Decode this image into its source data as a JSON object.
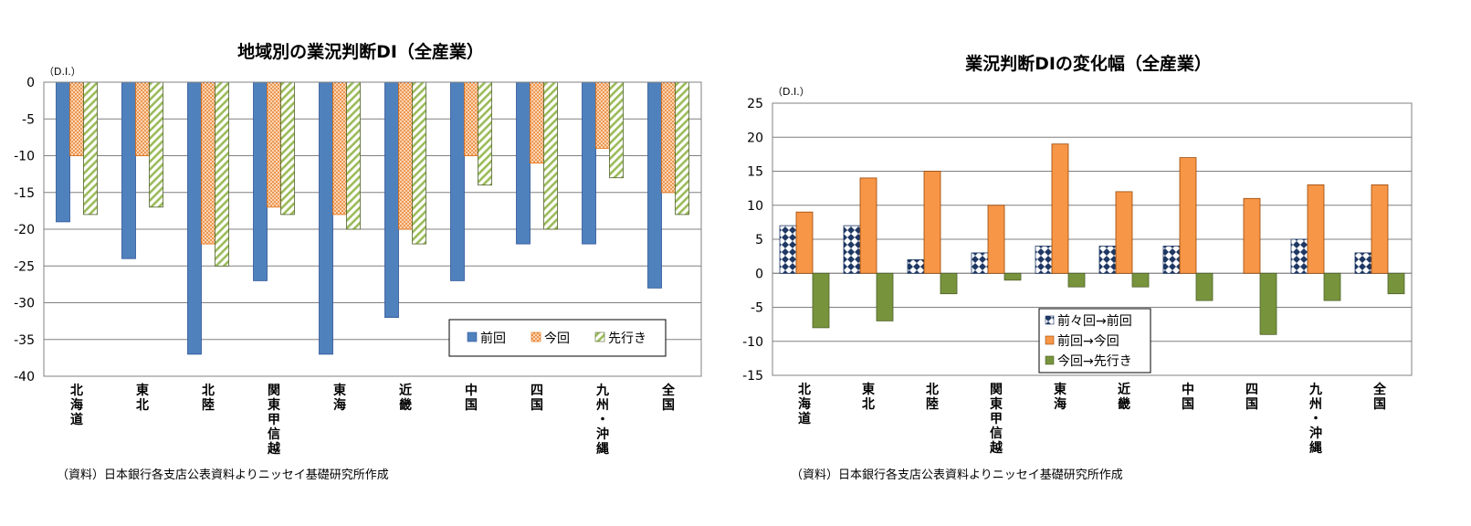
{
  "chart_data": [
    {
      "type": "bar",
      "title": "地域別の業況判断DI（全産業）",
      "unit_label": "（D.I.）",
      "categories": [
        "北海道",
        "東北",
        "北陸",
        "関東甲信越",
        "東海",
        "近畿",
        "中国",
        "四国",
        "九州・沖縄",
        "全国"
      ],
      "series": [
        {
          "name": "前回",
          "values": [
            -19,
            -24,
            -37,
            -27,
            -37,
            -32,
            -27,
            -22,
            -22,
            -28
          ],
          "color": "#4f81bd"
        },
        {
          "name": "今回",
          "values": [
            -10,
            -10,
            -22,
            -17,
            -18,
            -20,
            -10,
            -11,
            -9,
            -15
          ],
          "color": "#f79646"
        },
        {
          "name": "先行き",
          "values": [
            -18,
            -17,
            -25,
            -18,
            -20,
            -22,
            -14,
            -20,
            -13,
            -18
          ],
          "color": "#9bbb59"
        }
      ],
      "ylim": [
        -40,
        0
      ],
      "yticks": [
        "0",
        "-5",
        "-10",
        "-15",
        "-20",
        "-25",
        "-30",
        "-35",
        "-40"
      ],
      "grid": true,
      "legend_position": "bottom-right",
      "source": "（資料）日本銀行各支店公表資料よりニッセイ基礎研究所作成"
    },
    {
      "type": "bar",
      "title": "業況判断DIの変化幅（全産業）",
      "unit_label": "（D.I.）",
      "categories": [
        "北海道",
        "東北",
        "北陸",
        "関東甲信越",
        "東海",
        "近畿",
        "中国",
        "四国",
        "九州・沖縄",
        "全国"
      ],
      "series": [
        {
          "name": "前々回→前回",
          "values": [
            7,
            7,
            2,
            3,
            4,
            4,
            4,
            0,
            5,
            3
          ],
          "color": "#1f3864"
        },
        {
          "name": "前回→今回",
          "values": [
            9,
            14,
            15,
            10,
            19,
            12,
            17,
            11,
            13,
            13
          ],
          "color": "#f79646"
        },
        {
          "name": "今回→先行き",
          "values": [
            -8,
            -7,
            -3,
            -1,
            -2,
            -2,
            -4,
            -9,
            -4,
            -3
          ],
          "color": "#77933c"
        }
      ],
      "ylim": [
        -15,
        25
      ],
      "yticks": [
        "25",
        "20",
        "15",
        "10",
        "5",
        "0",
        "-5",
        "-10",
        "-15"
      ],
      "grid": true,
      "legend_position": "bottom-center",
      "source": "（資料）日本銀行各支店公表資料よりニッセイ基礎研究所作成"
    }
  ]
}
